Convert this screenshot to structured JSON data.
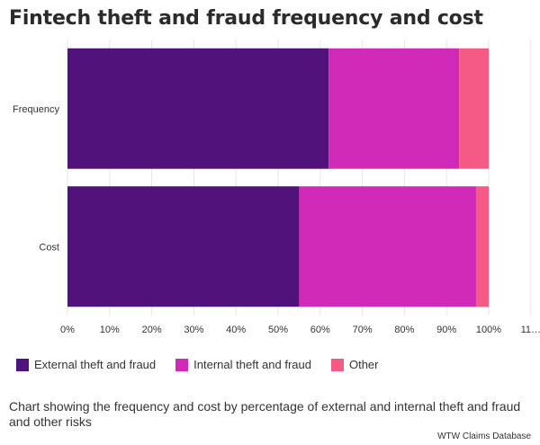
{
  "title": "Fintech theft and fraud frequency and cost",
  "caption": "Chart showing the frequency and cost by percentage of external and internal theft and fraud and other risks",
  "source": "WTW Claims Database",
  "chart_data": {
    "type": "bar",
    "orientation": "horizontal",
    "stacked": true,
    "categories": [
      "Frequency",
      "Cost"
    ],
    "series": [
      {
        "name": "External theft and fraud",
        "color": "#51127c",
        "values": [
          62,
          55
        ]
      },
      {
        "name": "Internal theft and fraud",
        "color": "#d22ab8",
        "values": [
          31,
          42
        ]
      },
      {
        "name": "Other",
        "color": "#f55a85",
        "values": [
          7,
          3
        ]
      }
    ],
    "xlim": [
      0,
      110
    ],
    "x_ticks": [
      "0%",
      "10%",
      "20%",
      "30%",
      "40%",
      "50%",
      "60%",
      "70%",
      "80%",
      "90%",
      "100%",
      "11…"
    ],
    "grid": "vertical",
    "legend_position": "bottom-left"
  }
}
